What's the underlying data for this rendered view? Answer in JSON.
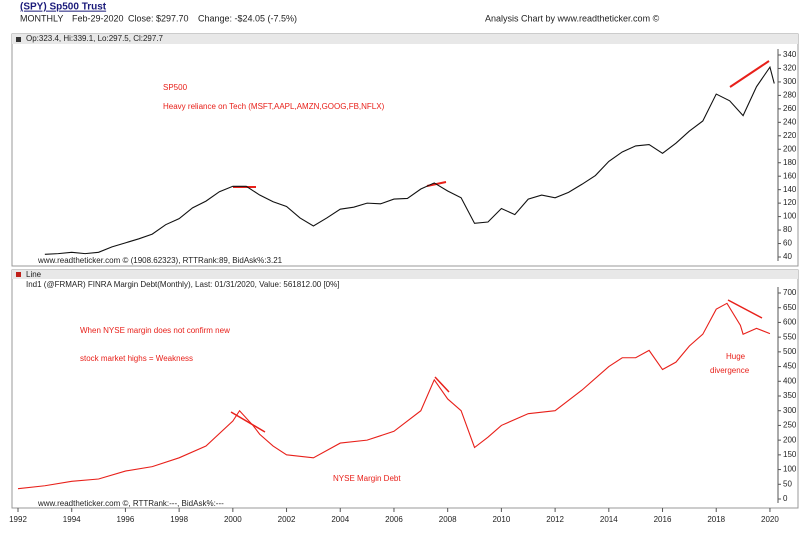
{
  "header": {
    "title": "(SPY) Sp500 Trust",
    "period": "MONTHLY",
    "date": "Feb-29-2020",
    "close": "Close: $297.70",
    "change": "Change: -$24.05  (-7.5%)",
    "credit": "Analysis Chart by www.readtheticker.com ©"
  },
  "chart_data": [
    {
      "type": "line",
      "legend_text": "Op:323.4, Hi:339.1, Lo:297.5, Cl:297.7",
      "footer": "www.readtheticker.com © (1908.62323), RTTRank:89, BidAsk%:3.21",
      "annotations": [
        "SP500",
        "Heavy reliance on Tech (MSFT,AAPL,AMZN,GOOG,FB,NFLX)"
      ],
      "color": "#111111",
      "x": [
        1993.0,
        1993.5,
        1994.0,
        1994.5,
        1995.0,
        1995.5,
        1996.0,
        1996.5,
        1997.0,
        1997.5,
        1998.0,
        1998.5,
        1999.0,
        1999.5,
        2000.0,
        2000.5,
        2001.0,
        2001.5,
        2002.0,
        2002.5,
        2003.0,
        2003.5,
        2004.0,
        2004.5,
        2005.0,
        2005.5,
        2006.0,
        2006.5,
        2007.0,
        2007.5,
        2008.0,
        2008.5,
        2009.0,
        2009.5,
        2010.0,
        2010.5,
        2011.0,
        2011.5,
        2012.0,
        2012.5,
        2013.0,
        2013.5,
        2014.0,
        2014.5,
        2015.0,
        2015.5,
        2016.0,
        2016.5,
        2017.0,
        2017.5,
        2018.0,
        2018.5,
        2019.0,
        2019.5,
        2020.0,
        2020.16
      ],
      "values": [
        44,
        45,
        47,
        45,
        47,
        55,
        61,
        67,
        74,
        88,
        97,
        113,
        123,
        137,
        145,
        145,
        132,
        122,
        115,
        98,
        86,
        98,
        111,
        114,
        120,
        119,
        126,
        127,
        141,
        150,
        138,
        128,
        90,
        92,
        112,
        103,
        126,
        132,
        128,
        136,
        148,
        161,
        182,
        196,
        205,
        207,
        194,
        209,
        227,
        242,
        282,
        272,
        250,
        293,
        322,
        297.7
      ],
      "xlim": [
        1992,
        2020.3
      ],
      "ylim": [
        40,
        340
      ],
      "yticks": [
        40,
        60,
        80,
        100,
        120,
        140,
        160,
        180,
        200,
        220,
        240,
        260,
        280,
        300,
        320,
        340
      ]
    },
    {
      "type": "line",
      "panel_name": "Line",
      "legend_text": "Ind1 (@FRMAR) FINRA Margin Debt(Monthly), Last: 01/31/2020,  Value: 561812.00 [0%]",
      "footer": "www.readtheticker.com ©, RTTRank:---, BidAsk%:---",
      "annotations": [
        "When NYSE margin does not confirm new",
        "stock market highs = Weakness",
        "NYSE Margin Debt",
        "Huge",
        "divergence"
      ],
      "color": "#e8201a",
      "x": [
        1992.0,
        1993.0,
        1994.0,
        1995.0,
        1996.0,
        1997.0,
        1998.0,
        1999.0,
        2000.0,
        2000.25,
        2000.75,
        2001.0,
        2001.5,
        2002.0,
        2003.0,
        2004.0,
        2005.0,
        2006.0,
        2007.0,
        2007.5,
        2008.0,
        2008.5,
        2009.0,
        2009.5,
        2010.0,
        2011.0,
        2012.0,
        2013.0,
        2014.0,
        2014.5,
        2015.0,
        2015.5,
        2016.0,
        2016.5,
        2017.0,
        2017.5,
        2018.0,
        2018.4,
        2018.9,
        2019.0,
        2019.5,
        2020.0
      ],
      "values": [
        35,
        45,
        60,
        68,
        95,
        110,
        140,
        180,
        265,
        300,
        250,
        220,
        180,
        150,
        140,
        190,
        200,
        230,
        300,
        405,
        340,
        300,
        175,
        210,
        250,
        290,
        300,
        370,
        450,
        480,
        480,
        505,
        440,
        465,
        520,
        560,
        645,
        665,
        590,
        560,
        580,
        562
      ],
      "xlim": [
        1992,
        2020.3
      ],
      "ylim": [
        0,
        700
      ],
      "yticks": [
        0,
        50,
        100,
        150,
        200,
        250,
        300,
        350,
        400,
        450,
        500,
        550,
        600,
        650,
        700
      ],
      "xticks": [
        1992,
        1994,
        1996,
        1998,
        2000,
        2002,
        2004,
        2006,
        2008,
        2010,
        2012,
        2014,
        2016,
        2018,
        2020
      ]
    }
  ]
}
